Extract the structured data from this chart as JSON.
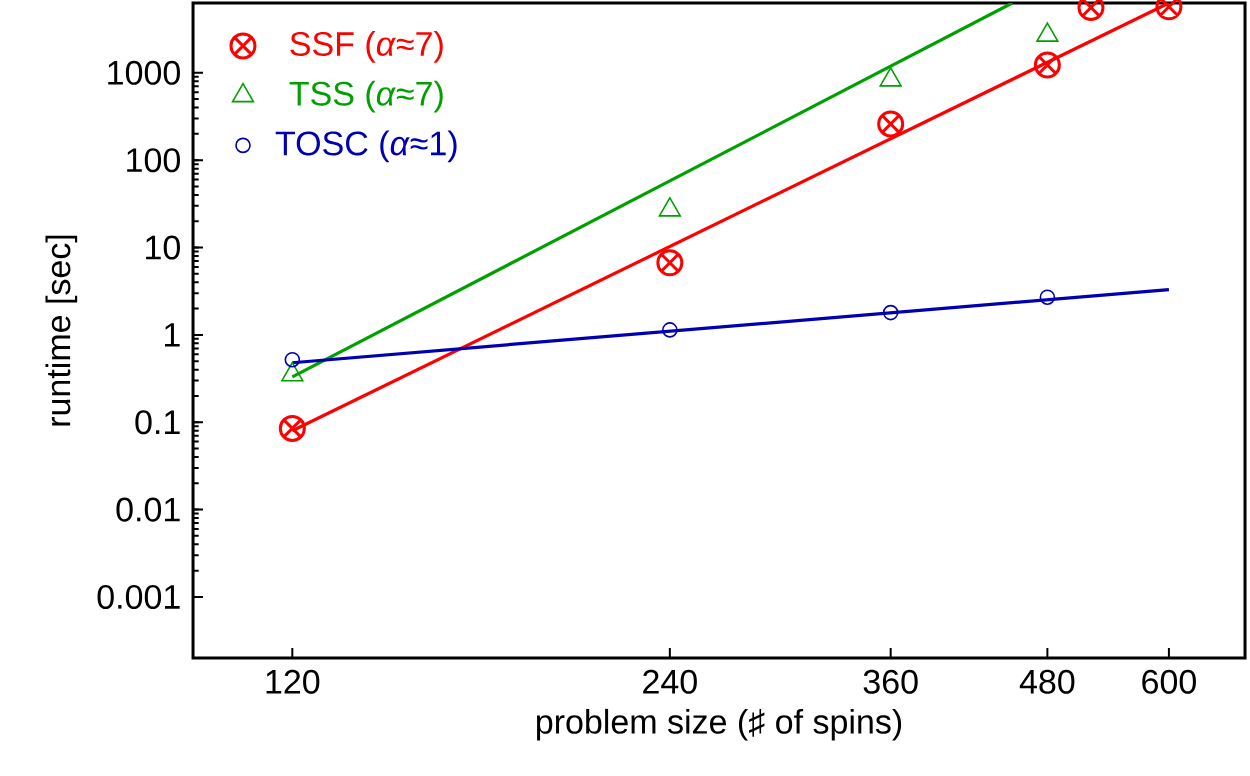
{
  "chart_data": {
    "type": "scatter",
    "xlabel": "problem size (♯ of spins)",
    "ylabel": "runtime [sec]",
    "log": "xy",
    "legend": "top left",
    "xlim": [
      100,
      690
    ],
    "ylim": [
      0.0002,
      6300
    ],
    "xticks": [
      120,
      240,
      360,
      480,
      600
    ],
    "yticks": [
      0.001,
      0.01,
      0.1,
      1,
      10,
      100,
      1000
    ],
    "series": [
      {
        "name": "SSF (*α*≈7)",
        "marker": "cross",
        "color": "#ff0000",
        "x": [
          120,
          240,
          360,
          480,
          520,
          600
        ],
        "values": [
          0.085,
          6.7,
          260,
          1230,
          5600,
          5700
        ]
      },
      {
        "name": "TSS (*α*≈7)",
        "marker": "triangle",
        "color": "#00a000",
        "x": [
          120,
          240,
          360,
          480
        ],
        "values": [
          0.35,
          27,
          830,
          2700
        ]
      },
      {
        "name": "TOSC (*α*≈1)",
        "marker": "circle",
        "color": "#0000b0",
        "x": [
          120,
          240,
          360,
          480
        ],
        "values": [
          0.52,
          1.14,
          1.8,
          2.7
        ]
      },
      {
        "type": "line",
        "color": "#ff0000",
        "x": [
          120,
          600
        ],
        "values": [
          0.08,
          6300
        ]
      },
      {
        "type": "line",
        "color": "#00a000",
        "x": [
          120,
          450
        ],
        "values": [
          0.33,
          6300
        ]
      },
      {
        "type": "line",
        "color": "#0000b0",
        "x": [
          120,
          600
        ],
        "values": [
          0.48,
          3.3
        ]
      }
    ]
  }
}
